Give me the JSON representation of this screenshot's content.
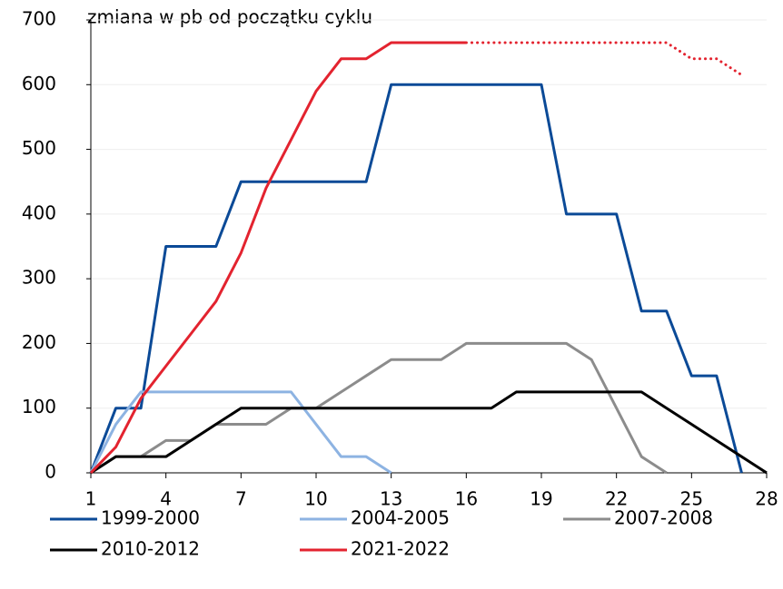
{
  "chart_data": {
    "type": "line",
    "y_axis_label": "zmiana w pb od początku cyklu",
    "x": [
      1,
      2,
      3,
      4,
      5,
      6,
      7,
      8,
      9,
      10,
      11,
      12,
      13,
      14,
      15,
      16,
      17,
      18,
      19,
      20,
      21,
      22,
      23,
      24,
      25,
      26,
      27,
      28
    ],
    "xlim": [
      1,
      28
    ],
    "xticks": [
      1,
      4,
      7,
      10,
      13,
      16,
      19,
      22,
      25,
      28
    ],
    "ylim": [
      0,
      700
    ],
    "yticks": [
      0,
      100,
      200,
      300,
      400,
      500,
      600,
      700
    ],
    "grid": true,
    "series": [
      {
        "name": "1999-2000",
        "color": "#0b4a97",
        "values": [
          0,
          100,
          100,
          350,
          350,
          350,
          450,
          450,
          450,
          450,
          450,
          450,
          600,
          600,
          600,
          600,
          600,
          600,
          600,
          400,
          400,
          400,
          250,
          250,
          150,
          150,
          0,
          null
        ]
      },
      {
        "name": "2004-2005",
        "color": "#8db3e2",
        "values": [
          0,
          75,
          125,
          125,
          125,
          125,
          125,
          125,
          125,
          75,
          25,
          25,
          0,
          null,
          null,
          null,
          null,
          null,
          null,
          null,
          null,
          null,
          null,
          null,
          null,
          null,
          null,
          null
        ]
      },
      {
        "name": "2007-2008",
        "color": "#8c8c8c",
        "values": [
          0,
          25,
          25,
          50,
          50,
          75,
          75,
          75,
          100,
          100,
          125,
          150,
          175,
          175,
          175,
          200,
          200,
          200,
          200,
          200,
          175,
          100,
          25,
          0,
          null,
          null,
          null,
          null
        ]
      },
      {
        "name": "2010-2012",
        "color": "#000000",
        "values": [
          0,
          25,
          25,
          25,
          50,
          75,
          100,
          100,
          100,
          100,
          100,
          100,
          100,
          100,
          100,
          100,
          100,
          125,
          125,
          125,
          125,
          125,
          125,
          100,
          75,
          50,
          25,
          0
        ]
      },
      {
        "name": "2021-2022",
        "color": "#e3232f",
        "values": [
          0,
          40,
          115,
          165,
          215,
          265,
          340,
          440,
          515,
          590,
          640,
          640,
          665,
          665,
          665,
          665,
          null,
          null,
          null,
          null,
          null,
          null,
          null,
          null,
          null,
          null,
          null,
          null
        ]
      },
      {
        "color": "#e3232f",
        "style": "dotted",
        "values": [
          null,
          null,
          null,
          null,
          null,
          null,
          null,
          null,
          null,
          null,
          null,
          null,
          null,
          null,
          null,
          665,
          665,
          665,
          665,
          665,
          665,
          665,
          665,
          665,
          640,
          640,
          615,
          null
        ]
      }
    ]
  }
}
